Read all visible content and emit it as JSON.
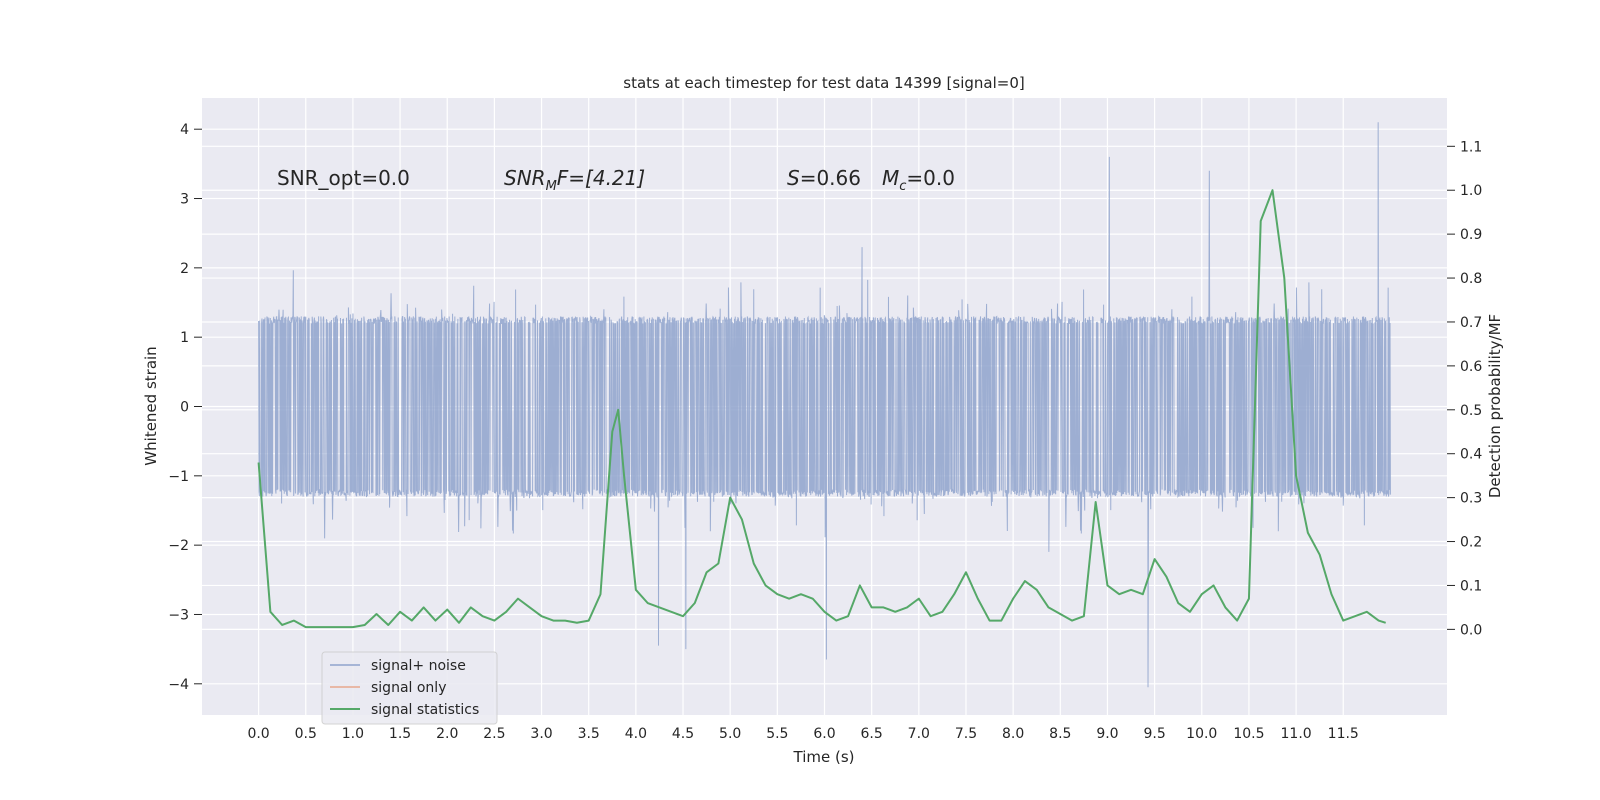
{
  "chart_data": {
    "type": "line",
    "title": "stats at each timestep for test data 14399 [signal=0]",
    "xlabel": "Time (s)",
    "ylabel_left": "Whitened strain",
    "ylabel_right": "Detection probability/MF",
    "xlim": [
      -0.6,
      12.6
    ],
    "ylim_left": [
      -4.45,
      4.45
    ],
    "ylim_right": [
      -0.195,
      1.21
    ],
    "x_ticks": [
      0.0,
      0.5,
      1.0,
      1.5,
      2.0,
      2.5,
      3.0,
      3.5,
      4.0,
      4.5,
      5.0,
      5.5,
      6.0,
      6.5,
      7.0,
      7.5,
      8.0,
      8.5,
      9.0,
      9.5,
      10.0,
      10.5,
      11.0,
      11.5
    ],
    "x_tick_labels": [
      "0.0",
      "0.5",
      "1.0",
      "1.5",
      "2.0",
      "2.5",
      "3.0",
      "3.5",
      "4.0",
      "4.5",
      "5.0",
      "5.5",
      "6.0",
      "6.5",
      "7.0",
      "7.5",
      "8.0",
      "8.5",
      "9.0",
      "9.5",
      "10.0",
      "10.5",
      "11.0",
      "11.5"
    ],
    "y_left_ticks": [
      4,
      3,
      2,
      1,
      0,
      -1,
      -2,
      -3,
      -4
    ],
    "y_left_tick_labels": [
      "4",
      "3",
      "2",
      "1",
      "0",
      "−1",
      "−2",
      "−3",
      "−4"
    ],
    "y_right_ticks": [
      1.1,
      1.0,
      0.9,
      0.8,
      0.7,
      0.6,
      0.5,
      0.4,
      0.3,
      0.2,
      0.1,
      0.0
    ],
    "y_right_tick_labels": [
      "1.1",
      "1.0",
      "0.9",
      "0.8",
      "0.7",
      "0.6",
      "0.5",
      "0.4",
      "0.3",
      "0.2",
      "0.1",
      "0.0"
    ],
    "grid": true,
    "legend_position": "lower-left",
    "annotations": {
      "snr_opt": "SNR_opt=0.0",
      "snr_mf_main": "SNR",
      "snr_mf_sub": "M",
      "snr_mf_rest": "F=[4.21]",
      "s_main": "S",
      "s_rest": "=0.66",
      "mc_main": "M",
      "mc_sub": "c",
      "mc_rest": "=0.0"
    },
    "series": [
      {
        "name": "signal+ noise",
        "color": "#8fa3cd",
        "axis": "left",
        "x_range": [
          0.0,
          12.0
        ],
        "typical_abs_max": 1.3,
        "envelope_upper": 3.0,
        "envelope_lower": -3.4,
        "extremes": [
          [
            11.87,
            4.1
          ],
          [
            9.43,
            -4.05
          ],
          [
            9.02,
            3.6
          ],
          [
            10.08,
            3.4
          ],
          [
            6.02,
            -3.65
          ],
          [
            4.53,
            -3.5
          ],
          [
            4.24,
            -3.45
          ]
        ]
      },
      {
        "name": "signal only",
        "color": "#e8a78c",
        "axis": "left",
        "x": [],
        "y": []
      },
      {
        "name": "signal statistics",
        "color": "#55a868",
        "axis": "right",
        "x": [
          0.0,
          0.125,
          0.25,
          0.375,
          0.5,
          0.625,
          0.75,
          0.875,
          1.0,
          1.125,
          1.25,
          1.375,
          1.5,
          1.625,
          1.75,
          1.875,
          2.0,
          2.125,
          2.25,
          2.375,
          2.5,
          2.625,
          2.75,
          2.875,
          3.0,
          3.125,
          3.25,
          3.375,
          3.5,
          3.625,
          3.75,
          3.8125,
          3.875,
          4.0,
          4.125,
          4.25,
          4.375,
          4.5,
          4.625,
          4.75,
          4.875,
          5.0,
          5.125,
          5.25,
          5.375,
          5.5,
          5.625,
          5.75,
          5.875,
          6.0,
          6.125,
          6.25,
          6.375,
          6.5,
          6.625,
          6.75,
          6.875,
          7.0,
          7.125,
          7.25,
          7.375,
          7.5,
          7.625,
          7.75,
          7.875,
          8.0,
          8.125,
          8.25,
          8.375,
          8.5,
          8.625,
          8.75,
          8.875,
          9.0,
          9.125,
          9.25,
          9.375,
          9.5,
          9.625,
          9.75,
          9.875,
          10.0,
          10.125,
          10.25,
          10.375,
          10.5,
          10.625,
          10.75,
          10.875,
          11.0,
          11.125,
          11.25,
          11.375,
          11.5,
          11.625,
          11.75,
          11.875,
          11.95
        ],
        "y": [
          0.38,
          0.04,
          0.01,
          0.02,
          0.005,
          0.005,
          0.005,
          0.005,
          0.005,
          0.01,
          0.035,
          0.01,
          0.04,
          0.02,
          0.05,
          0.02,
          0.045,
          0.015,
          0.05,
          0.03,
          0.02,
          0.04,
          0.07,
          0.05,
          0.03,
          0.02,
          0.02,
          0.015,
          0.02,
          0.08,
          0.45,
          0.5,
          0.35,
          0.09,
          0.06,
          0.05,
          0.04,
          0.03,
          0.06,
          0.13,
          0.15,
          0.3,
          0.25,
          0.15,
          0.1,
          0.08,
          0.07,
          0.08,
          0.07,
          0.04,
          0.02,
          0.03,
          0.1,
          0.05,
          0.05,
          0.04,
          0.05,
          0.07,
          0.03,
          0.04,
          0.08,
          0.13,
          0.07,
          0.02,
          0.02,
          0.07,
          0.11,
          0.09,
          0.05,
          0.035,
          0.02,
          0.03,
          0.29,
          0.1,
          0.08,
          0.09,
          0.08,
          0.16,
          0.12,
          0.06,
          0.04,
          0.08,
          0.1,
          0.05,
          0.02,
          0.07,
          0.93,
          1.0,
          0.8,
          0.35,
          0.22,
          0.17,
          0.08,
          0.02,
          0.03,
          0.04,
          0.02,
          0.015
        ]
      }
    ]
  }
}
